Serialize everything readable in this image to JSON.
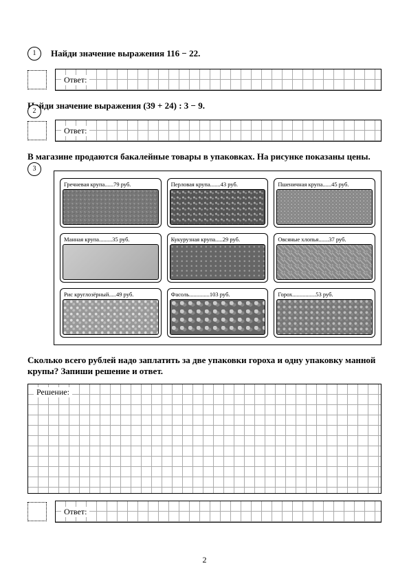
{
  "task1": {
    "number": "1",
    "text": "Найди значение выражения 116 − 22."
  },
  "task2": {
    "text": "Найди значение выражения (39 + 24) : 3 − 9."
  },
  "task3": {
    "text": "В магазине продаются бакалейные товары в упаковках. На рисунке показаны цены."
  },
  "answer_label": "Ответ:",
  "solution_label": "Решение:",
  "products": [
    {
      "name": "Гречневая крупа",
      "price": "79 руб.",
      "tex": "tex1"
    },
    {
      "name": "Перловая крупа",
      "price": "43 руб.",
      "tex": "tex2"
    },
    {
      "name": "Пшеничная крупа",
      "price": "45 руб.",
      "tex": "tex3"
    },
    {
      "name": "Манная крупа",
      "price": "35 руб.",
      "tex": "tex4"
    },
    {
      "name": "Кукурузная крупа",
      "price": "29 руб.",
      "tex": "tex5"
    },
    {
      "name": "Овсяные хлопья",
      "price": "37 руб.",
      "tex": "tex6"
    },
    {
      "name": "Рис круглозёрный",
      "price": "49 руб.",
      "tex": "tex7"
    },
    {
      "name": "Фасоль",
      "price": "103 руб.",
      "tex": "tex8"
    },
    {
      "name": "Горох",
      "price": "53 руб.",
      "tex": "tex9"
    }
  ],
  "question": "Сколько всего рублей надо заплатить за две упаковки гороха и одну упаковку манной крупы? Запиши решение и ответ.",
  "page_number": "2"
}
